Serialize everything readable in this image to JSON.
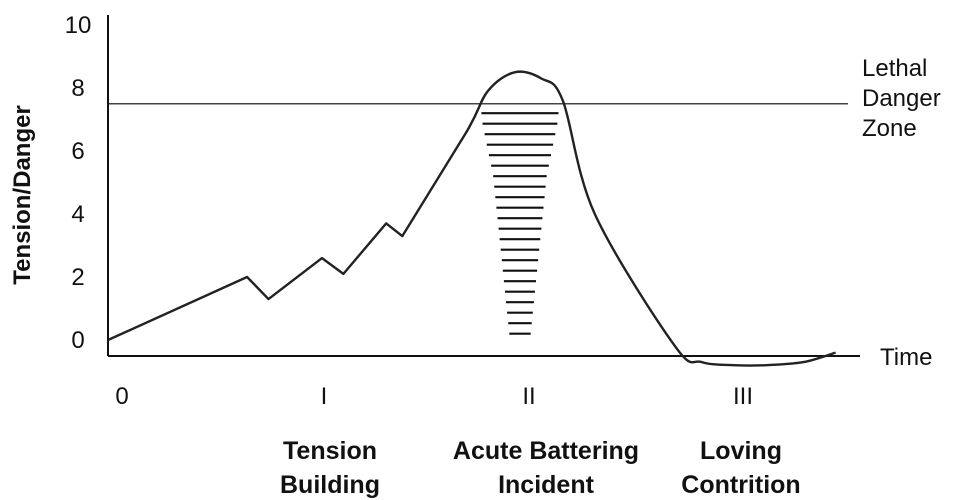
{
  "chart_data": {
    "type": "line",
    "ylabel": "Tension/Danger",
    "xlabel": "Time",
    "ylim": [
      -0.5,
      10
    ],
    "yticks": [
      10,
      8,
      6,
      4,
      2,
      0
    ],
    "phases": [
      {
        "numeral": "0",
        "title_lines": []
      },
      {
        "numeral": "I",
        "title_lines": [
          "Tension",
          "Building"
        ]
      },
      {
        "numeral": "II",
        "title_lines": [
          "Acute Battering",
          "Incident"
        ]
      },
      {
        "numeral": "III",
        "title_lines": [
          "Loving",
          "Contrition"
        ]
      }
    ],
    "threshold": {
      "y": 7.5,
      "label_lines": [
        "Lethal",
        "Danger",
        "Zone"
      ]
    },
    "series": [
      {
        "x": [
          0,
          1.3,
          1.5,
          2.0,
          2.2,
          2.6,
          2.75,
          3.35,
          3.55,
          3.8,
          4.05,
          4.25,
          4.55,
          5.3,
          5.55,
          5.85,
          6.15,
          6.5,
          6.8
        ],
        "y": [
          0,
          2.0,
          1.3,
          2.6,
          2.1,
          3.7,
          3.3,
          6.6,
          7.9,
          8.5,
          8.3,
          7.6,
          4.0,
          -0.2,
          -0.7,
          -0.8,
          -0.8,
          -0.7,
          -0.4
        ]
      }
    ],
    "shading": {
      "y_top": 7.2,
      "y_bottom": 0.2,
      "x_center": 3.85,
      "widths": [
        0.72,
        0.7,
        0.66,
        0.62,
        0.58,
        0.54,
        0.5,
        0.48,
        0.46,
        0.44,
        0.42,
        0.4,
        0.38,
        0.36,
        0.34,
        0.32,
        0.3,
        0.28,
        0.26,
        0.24,
        0.22,
        0.2
      ]
    }
  }
}
